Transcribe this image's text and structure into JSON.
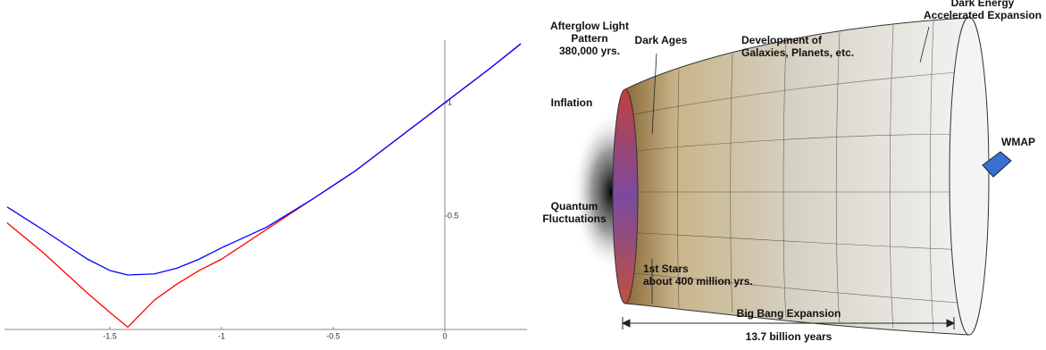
{
  "chart_data": {
    "type": "line",
    "x": [
      -1.96,
      -1.8,
      -1.6,
      -1.5,
      -1.42,
      -1.3,
      -1.2,
      -1.1,
      -1,
      -0.8,
      -0.6,
      -0.4,
      -0.2,
      0,
      0.2,
      0.34
    ],
    "series": [
      {
        "color": "#ff0000",
        "values": [
          0.47,
          0.34,
          0.16,
          0.075,
          0.01,
          0.13,
          0.2,
          0.26,
          0.31,
          0.44,
          0.57,
          0.7,
          0.85,
          1.0,
          1.15,
          1.26
        ]
      },
      {
        "color": "#0000ff",
        "values": [
          0.54,
          0.44,
          0.31,
          0.26,
          0.24,
          0.245,
          0.27,
          0.31,
          0.36,
          0.45,
          0.57,
          0.7,
          0.85,
          1.0,
          1.15,
          1.26
        ]
      }
    ],
    "xlim": [
      -1.992,
      0.368
    ],
    "ylim": [
      -0.012,
      1.276
    ],
    "xticks": [
      -1.5,
      -1,
      -0.5,
      0
    ],
    "yticks": [
      0.5,
      1
    ]
  },
  "diagram": {
    "labels": {
      "afterglow": [
        "Afterglow Light",
        "Pattern",
        "380,000 yrs."
      ],
      "dark_ages": [
        "Dark Ages"
      ],
      "development": [
        "Development of",
        "Galaxies, Planets, etc."
      ],
      "dark_energy": [
        "Dark Energy",
        "Accelerated Expansion"
      ],
      "inflation": [
        "Inflation"
      ],
      "wmap": [
        "WMAP"
      ],
      "quantum": [
        "Quantum",
        "Fluctuations"
      ],
      "first_stars": [
        "1st Stars",
        "about 400 million yrs."
      ],
      "big_bang": [
        "Big Bang Expansion"
      ],
      "age": [
        "13.7 billion years"
      ]
    }
  }
}
